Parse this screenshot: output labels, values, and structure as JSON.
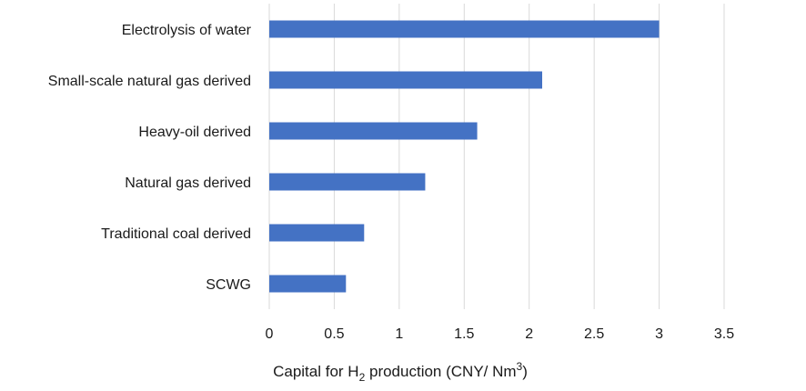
{
  "chart_data": {
    "type": "bar",
    "orientation": "horizontal",
    "categories": [
      "Electrolysis of water",
      "Small-scale natural gas derived",
      "Heavy-oil derived",
      "Natural gas derived",
      "Traditional coal derived",
      "SCWG"
    ],
    "values": [
      3.0,
      2.1,
      1.6,
      1.2,
      0.73,
      0.59
    ],
    "xlabel_prefix": "Capital for H",
    "xlabel_sub": "2",
    "xlabel_mid": " production (CNY/ Nm",
    "xlabel_sup": "3",
    "xlabel_suffix": ")",
    "xlim": [
      0,
      3.5
    ],
    "xticks": [
      "0",
      "0.5",
      "1",
      "1.5",
      "2",
      "2.5",
      "3",
      "3.5"
    ],
    "grid": "vertical",
    "legend": "none",
    "bar_color": "#4472c4",
    "grid_color": "#d9d9d9"
  }
}
